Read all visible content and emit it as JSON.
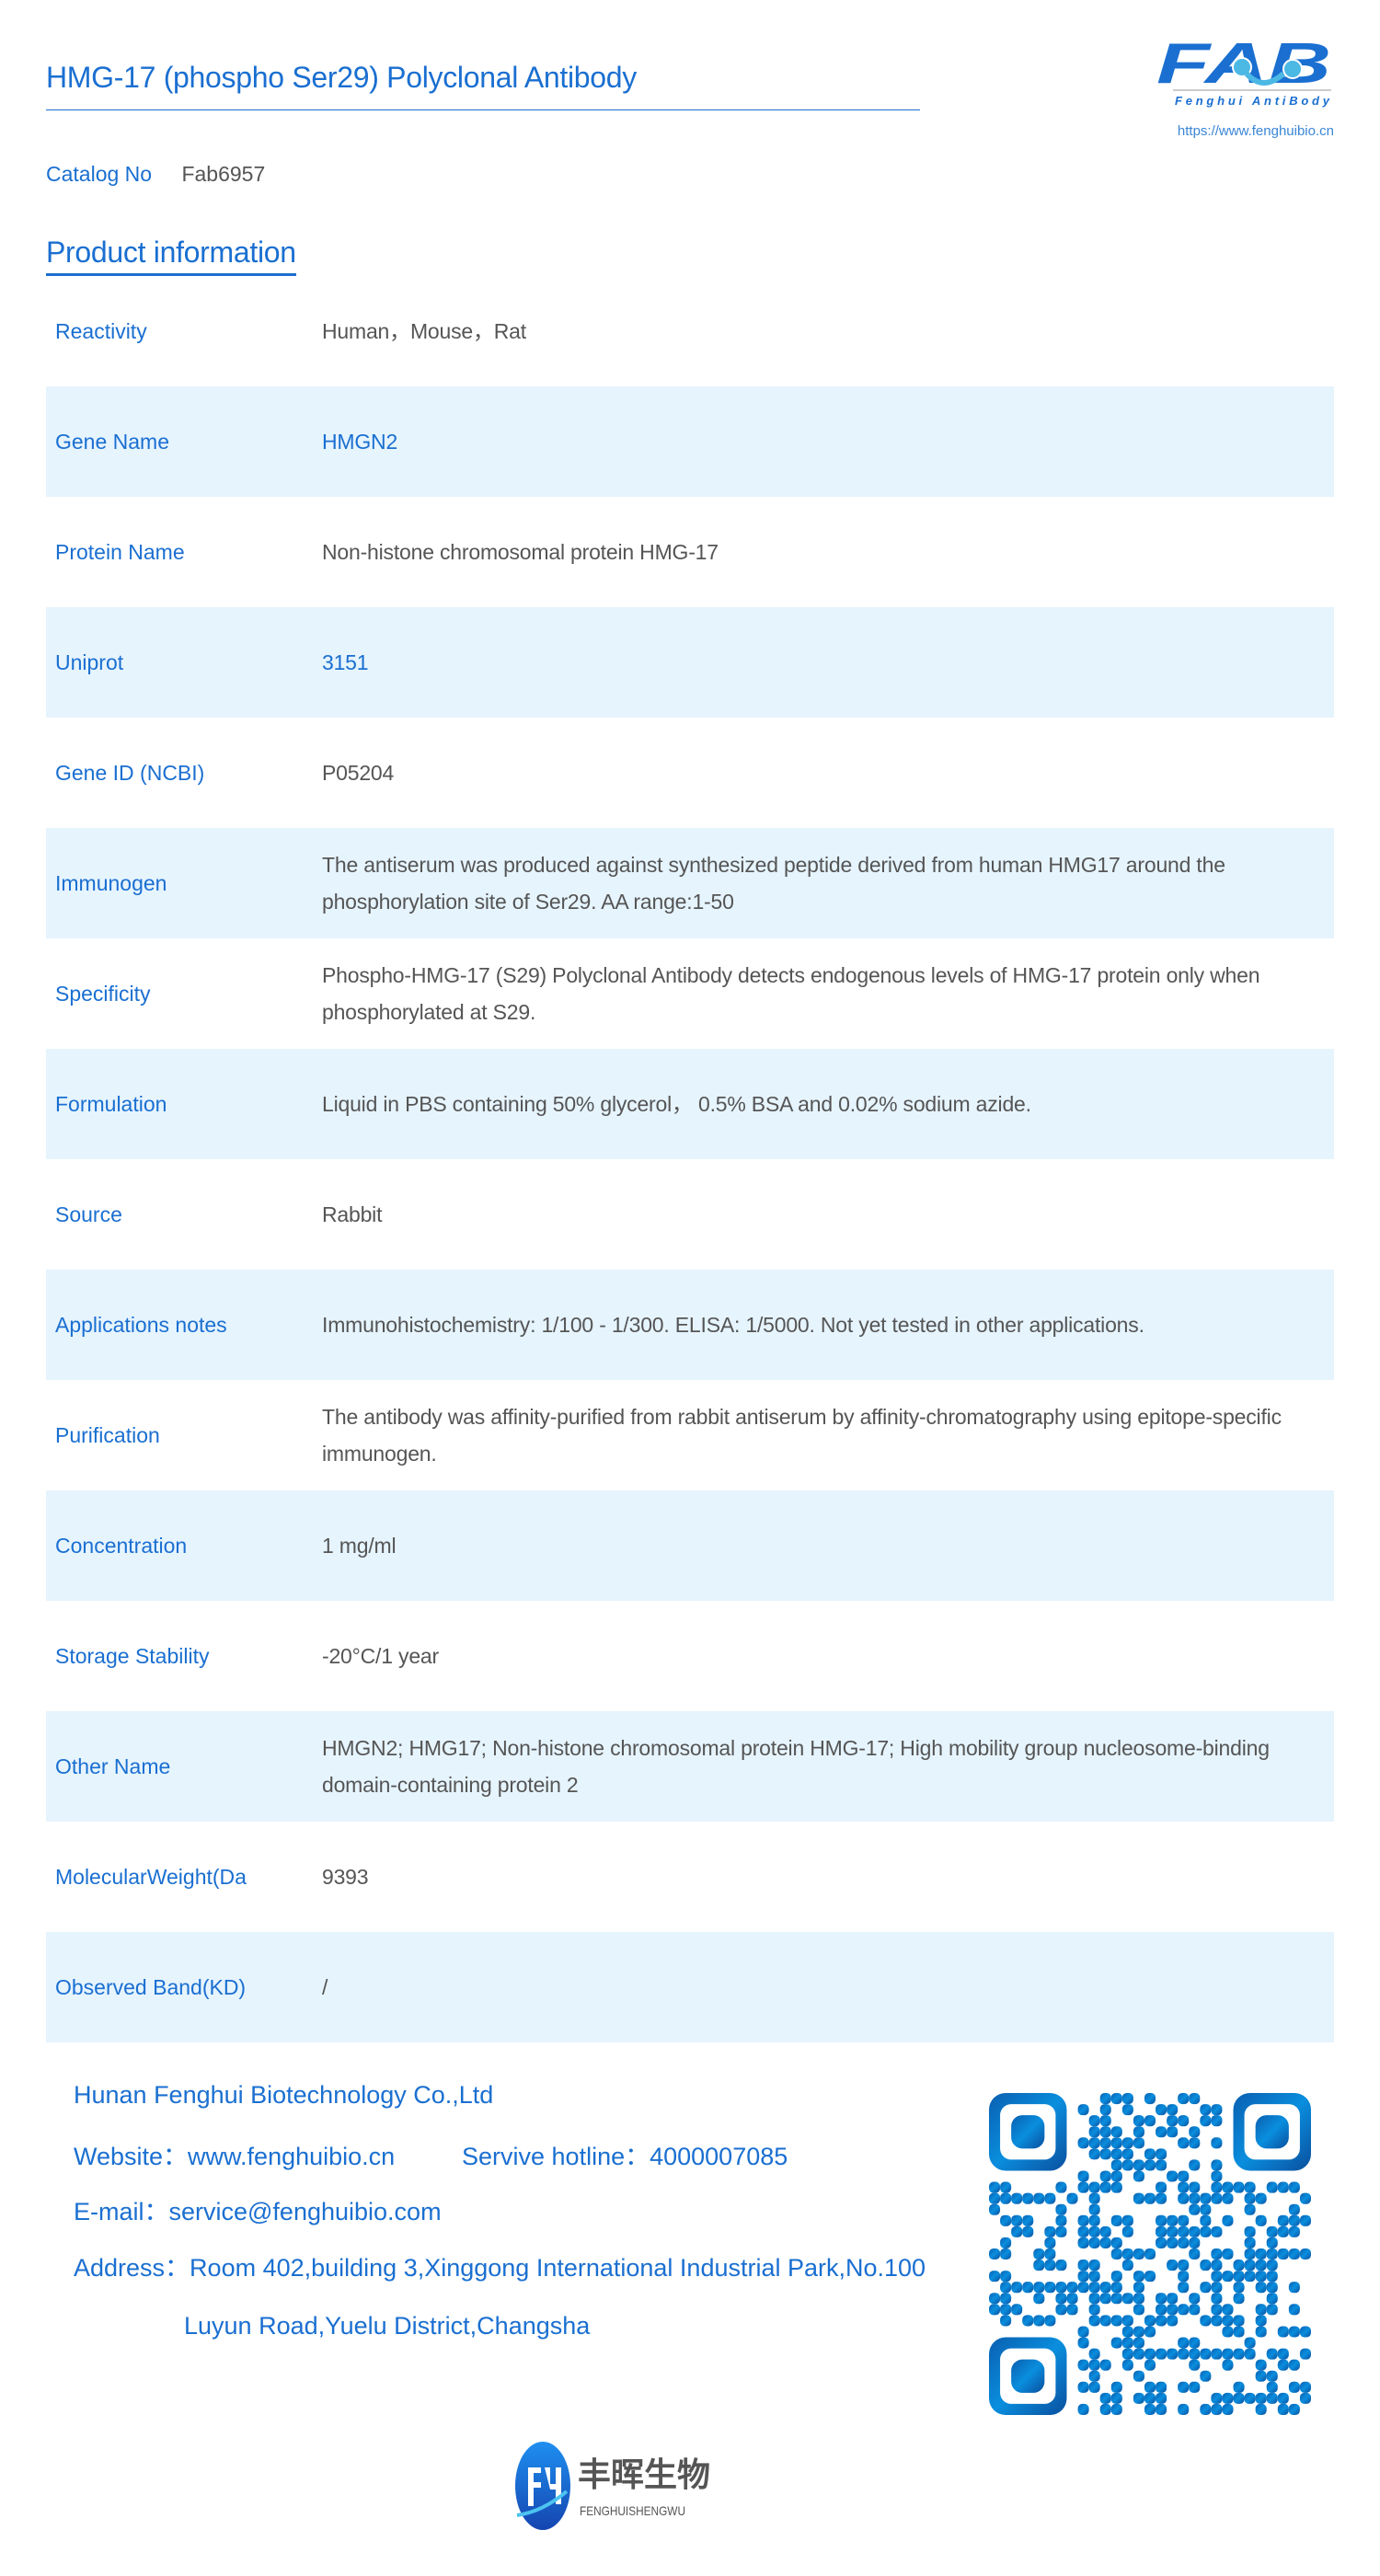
{
  "header": {
    "title": "HMG-17 (phospho Ser29) Polyclonal Antibody",
    "logo_text": "FAB",
    "logo_tagline": "Fenghui AntiBody",
    "logo_url": "https://www.fenghuibio.cn"
  },
  "catalog": {
    "label": "Catalog No",
    "value": "Fab6957"
  },
  "section_title": "Product information",
  "rows": [
    {
      "label": "Reactivity",
      "value": "Human，Mouse，Rat"
    },
    {
      "label": "Gene Name",
      "value": "HMGN2"
    },
    {
      "label": "Protein Name",
      "value": "Non-histone chromosomal protein HMG-17"
    },
    {
      "label": "Uniprot",
      "value": "3151"
    },
    {
      "label": "Gene ID (NCBI)",
      "value": "P05204"
    },
    {
      "label": "Immunogen",
      "value": "The antiserum was produced against synthesized peptide derived from human HMG17 around the phosphorylation site of Ser29. AA range:1-50"
    },
    {
      "label": "Specificity",
      "value": "Phospho-HMG-17 (S29) Polyclonal Antibody detects endogenous levels of HMG-17 protein only when phosphorylated at S29."
    },
    {
      "label": "Formulation",
      "value": "Liquid in PBS containing 50% glycerol， 0.5% BSA and 0.02% sodium azide."
    },
    {
      "label": "Source",
      "value": "Rabbit"
    },
    {
      "label": "Applications notes",
      "value": "Immunohistochemistry: 1/100 - 1/300. ELISA: 1/5000. Not yet tested in other applications."
    },
    {
      "label": "Purification",
      "value": "The antibody was affinity-purified from rabbit antiserum by affinity-chromatography using epitope-specific immunogen."
    },
    {
      "label": "Concentration",
      "value": "1 mg/ml"
    },
    {
      "label": "Storage Stability",
      "value": "-20°C/1 year"
    },
    {
      "label": "Other Name",
      "value": "HMGN2; HMG17; Non-histone chromosomal protein HMG-17; High mobility group nucleosome-binding domain-containing protein 2"
    },
    {
      "label": "MolecularWeight(Da",
      "value": "9393"
    },
    {
      "label": "Observed Band(KD)",
      "value": "/"
    }
  ],
  "footer": {
    "company": "Hunan Fenghui Biotechnology Co.,Ltd",
    "website": "Website：www.fenghuibio.cn",
    "hotline": "Servive hotline：4000007085",
    "email": "E-mail：service@fenghuibio.com",
    "address_line1": "Address：Room 402,building 3,Xinggong International Industrial Park,No.100",
    "address_line2": "Luyun Road,Yuelu District,Changsha"
  },
  "brand": {
    "chinese": "丰晖生物",
    "pinyin": "FENGHUISHENGWU"
  },
  "colors": {
    "accent": "#1a6fd1",
    "row_alt": "#e6f4fe",
    "text": "#555555"
  }
}
